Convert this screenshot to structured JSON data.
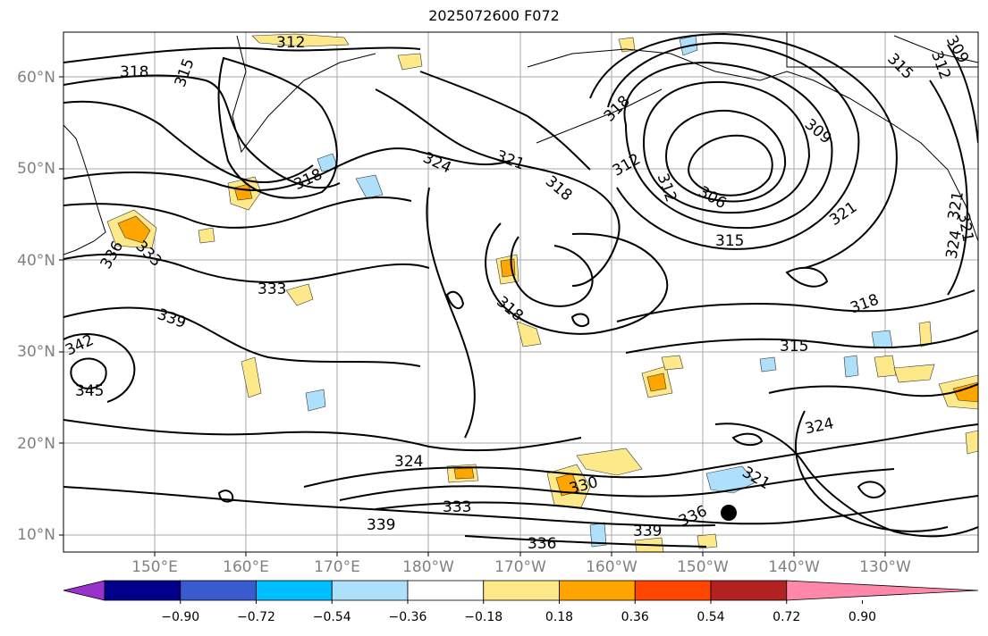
{
  "title": "2025072600 F072",
  "lat_labels": [
    "60°N",
    "50°N",
    "40°N",
    "30°N",
    "20°N",
    "10°N"
  ],
  "lon_labels": [
    "150°E",
    "160°E",
    "170°E",
    "180°W",
    "170°W",
    "160°W",
    "150°W",
    "140°W",
    "130°W"
  ],
  "colorbar": {
    "ticks": [
      "−0.90",
      "−0.72",
      "−0.54",
      "−0.36",
      "−0.18",
      "0.18",
      "0.36",
      "0.54",
      "0.72",
      "0.90"
    ],
    "colors": [
      "#9932cc",
      "#00008b",
      "#3a5bcd",
      "#00bfff",
      "#aee0fb",
      "#ffffff",
      "#fde98a",
      "#ffa500",
      "#ff4500",
      "#b22222",
      "#ff88aa"
    ]
  },
  "contour_labels": [
    "312",
    "318",
    "315",
    "318",
    "324",
    "321",
    "318",
    "318",
    "312",
    "309",
    "312",
    "306",
    "315",
    "321",
    "336",
    "333",
    "333",
    "339",
    "342",
    "345",
    "318",
    "315",
    "318",
    "324",
    "324",
    "330",
    "333",
    "339",
    "336",
    "339",
    "336",
    "321",
    "309",
    "312",
    "315",
    "321",
    "324",
    "321"
  ],
  "colors": {
    "contour": "#000000",
    "grid": "#999999",
    "coast": "#000000"
  }
}
